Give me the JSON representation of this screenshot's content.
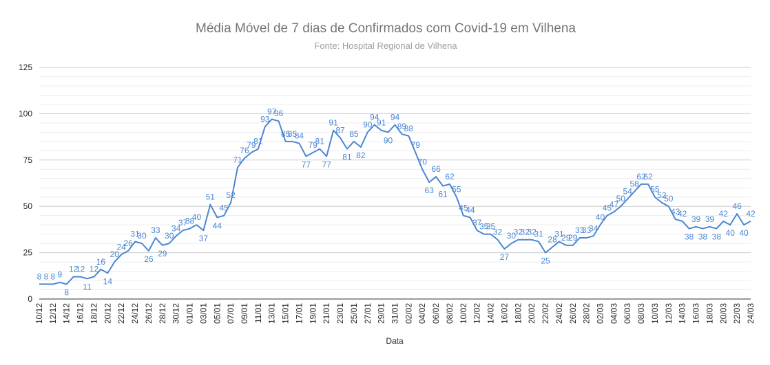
{
  "chart_data": {
    "type": "line",
    "title": "Média Móvel de 7 dias de Confirmados com Covid-19 em Vilhena",
    "subtitle": "Fonte: Hospital Regional de Vilhena",
    "xlabel": "Data",
    "ylabel": "",
    "ylim": [
      0,
      125
    ],
    "yticks": [
      "0",
      "25",
      "50",
      "75",
      "100",
      "125"
    ],
    "grid": true,
    "legend": "none",
    "line_color": "#4a86d4",
    "label_color": "#4a86d4",
    "x": [
      "10/12",
      "11/12",
      "12/12",
      "13/12",
      "14/12",
      "15/12",
      "16/12",
      "17/12",
      "18/12",
      "19/12",
      "20/12",
      "21/12",
      "22/12",
      "23/12",
      "24/12",
      "25/12",
      "26/12",
      "27/12",
      "28/12",
      "29/12",
      "30/12",
      "31/12",
      "01/01",
      "02/01",
      "03/01",
      "04/01",
      "05/01",
      "06/01",
      "07/01",
      "08/01",
      "09/01",
      "10/01",
      "11/01",
      "12/01",
      "13/01",
      "14/01",
      "15/01",
      "16/01",
      "17/01",
      "18/01",
      "19/01",
      "20/01",
      "21/01",
      "22/01",
      "23/01",
      "24/01",
      "25/01",
      "26/01",
      "27/01",
      "28/01",
      "29/01",
      "30/01",
      "31/01",
      "01/02",
      "02/02",
      "03/02",
      "04/02",
      "05/02",
      "06/02",
      "07/02",
      "08/02",
      "09/02",
      "10/02",
      "11/02",
      "12/02",
      "13/02",
      "14/02",
      "15/02",
      "16/02",
      "17/02",
      "18/02",
      "19/02",
      "20/02",
      "21/02",
      "22/02",
      "23/02",
      "24/02",
      "25/02",
      "26/02",
      "27/02",
      "28/02",
      "01/03",
      "02/03",
      "03/03",
      "04/03",
      "05/03",
      "06/03",
      "07/03",
      "08/03",
      "09/03",
      "10/03",
      "11/03",
      "12/03",
      "13/03",
      "14/03",
      "15/03",
      "16/03",
      "17/03",
      "18/03",
      "19/03",
      "20/03",
      "21/03",
      "22/03",
      "23/03",
      "24/03"
    ],
    "xtick_labels": [
      "10/12",
      "12/12",
      "14/12",
      "16/12",
      "18/12",
      "20/12",
      "22/12",
      "24/12",
      "26/12",
      "28/12",
      "30/12",
      "01/01",
      "03/01",
      "05/01",
      "07/01",
      "09/01",
      "11/01",
      "13/01",
      "15/01",
      "17/01",
      "19/01",
      "21/01",
      "23/01",
      "25/01",
      "27/01",
      "29/01",
      "31/01",
      "02/02",
      "04/02",
      "06/02",
      "08/02",
      "10/02",
      "12/02",
      "14/02",
      "16/02",
      "18/02",
      "20/02",
      "22/02",
      "24/02",
      "26/02",
      "28/02",
      "02/03",
      "04/03",
      "06/03",
      "08/03",
      "10/03",
      "12/03",
      "14/03",
      "16/03",
      "18/03",
      "20/03",
      "22/03",
      "24/03"
    ],
    "series": [
      {
        "values": [
          8,
          8,
          8,
          9,
          8,
          12,
          12,
          11,
          12,
          16,
          14,
          20,
          24,
          26,
          31,
          30,
          26,
          33,
          29,
          30,
          34,
          37,
          38,
          40,
          37,
          51,
          44,
          45,
          52,
          71,
          76,
          79,
          81,
          93,
          97,
          96,
          85,
          85,
          84,
          77,
          79,
          81,
          77,
          91,
          87,
          81,
          85,
          82,
          90,
          94,
          91,
          90,
          94,
          89,
          88,
          79,
          70,
          63,
          66,
          61,
          62,
          55,
          45,
          44,
          37,
          35,
          35,
          32,
          27,
          30,
          32,
          32,
          32,
          31,
          25,
          28,
          31,
          29,
          29,
          33,
          33,
          34,
          40,
          45,
          47,
          50,
          54,
          58,
          62,
          62,
          55,
          52,
          50,
          43,
          42,
          38,
          39,
          38,
          39,
          38,
          42,
          40,
          46,
          40,
          42
        ]
      }
    ]
  }
}
